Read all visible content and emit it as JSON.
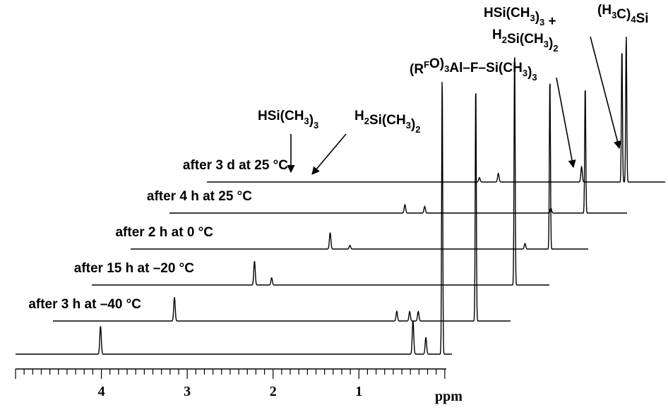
{
  "chart_data": {
    "type": "line",
    "title": "",
    "xlabel": "ppm",
    "ylabel": "",
    "xlim": [
      5.0,
      -0.1
    ],
    "x_reversed": true,
    "grid": false,
    "legend": "none",
    "x_ticks": [
      "4",
      "3",
      "2",
      "1"
    ],
    "series": [
      {
        "label": "",
        "peaks": [
          {
            "ppm": 4.01,
            "height": 0.1
          },
          {
            "ppm": 0.37,
            "height": 0.12
          },
          {
            "ppm": 0.22,
            "height": 0.06
          },
          {
            "ppm": 0.03,
            "height": 1.0
          }
        ]
      },
      {
        "label": "after 3 h at –40 °C",
        "peaks": [
          {
            "ppm": 3.56,
            "height": 0.1
          },
          {
            "ppm": 0.97,
            "height": 0.04
          },
          {
            "ppm": 0.82,
            "height": 0.04
          },
          {
            "ppm": 0.72,
            "height": 0.04
          },
          {
            "ppm": 0.05,
            "height": 1.0
          }
        ]
      },
      {
        "label": "after 15 h at –20 °C",
        "peaks": [
          {
            "ppm": 3.08,
            "height": 0.1
          },
          {
            "ppm": 2.88,
            "height": 0.03
          },
          {
            "ppm": 0.05,
            "height": 1.0
          }
        ]
      },
      {
        "label": "after 2 h at 0 °C",
        "peaks": [
          {
            "ppm": 2.61,
            "height": 0.09
          },
          {
            "ppm": 2.38,
            "height": 0.02
          },
          {
            "ppm": 0.34,
            "height": 0.03
          },
          {
            "ppm": 0.05,
            "height": 0.95
          }
        ]
      },
      {
        "label": "after 4 h at 25 °C",
        "peaks": [
          {
            "ppm": 2.15,
            "height": 0.05
          },
          {
            "ppm": 1.92,
            "height": 0.04
          },
          {
            "ppm": 0.45,
            "height": 0.03
          },
          {
            "ppm": 0.05,
            "height": 0.78
          }
        ]
      },
      {
        "label": "after 3 d at 25 °C",
        "peaks": [
          {
            "ppm": 1.71,
            "height": 0.02
          },
          {
            "ppm": 1.49,
            "height": 0.04
          },
          {
            "ppm": 0.52,
            "height": 0.07
          },
          {
            "ppm": 0.05,
            "height": 0.62
          },
          {
            "ppm": 0.0,
            "height": 0.68
          }
        ]
      }
    ],
    "annotations": [
      {
        "text": "HSi(CH3)3",
        "parts": [
          [
            "HSi(CH",
            "n"
          ],
          [
            "3",
            "s"
          ],
          [
            ")",
            "n"
          ],
          [
            "3",
            "s"
          ]
        ]
      },
      {
        "text": "H2Si(CH3)2",
        "parts": [
          [
            "H",
            "n"
          ],
          [
            "2",
            "s"
          ],
          [
            "Si(CH",
            "n"
          ],
          [
            "3",
            "s"
          ],
          [
            ")",
            "n"
          ],
          [
            "2",
            "s"
          ]
        ]
      },
      {
        "text": "(RFO)3Al–F–Si(CH3)3",
        "parts": [
          [
            "(R",
            "n"
          ],
          [
            "F",
            "p"
          ],
          [
            "O)",
            "n"
          ],
          [
            "3",
            "s"
          ],
          [
            "Al–F–Si(CH",
            "n"
          ],
          [
            "3",
            "s"
          ],
          [
            ")",
            "n"
          ],
          [
            "3",
            "s"
          ]
        ]
      },
      {
        "text": "HSi(CH3)3 +",
        "parts": [
          [
            "HSi(CH",
            "n"
          ],
          [
            "3",
            "s"
          ],
          [
            ")",
            "n"
          ],
          [
            "3",
            "s"
          ],
          [
            " +",
            "n"
          ]
        ]
      },
      {
        "text": "H2Si(CH3)2",
        "parts": [
          [
            "H",
            "n"
          ],
          [
            "2",
            "s"
          ],
          [
            "Si(CH",
            "n"
          ],
          [
            "3",
            "s"
          ],
          [
            ")",
            "n"
          ],
          [
            "2",
            "s"
          ]
        ]
      },
      {
        "text": "(H3C)4Si",
        "parts": [
          [
            "(H",
            "n"
          ],
          [
            "3",
            "s"
          ],
          [
            "C)",
            "n"
          ],
          [
            "4",
            "s"
          ],
          [
            "Si",
            "n"
          ]
        ]
      }
    ]
  }
}
